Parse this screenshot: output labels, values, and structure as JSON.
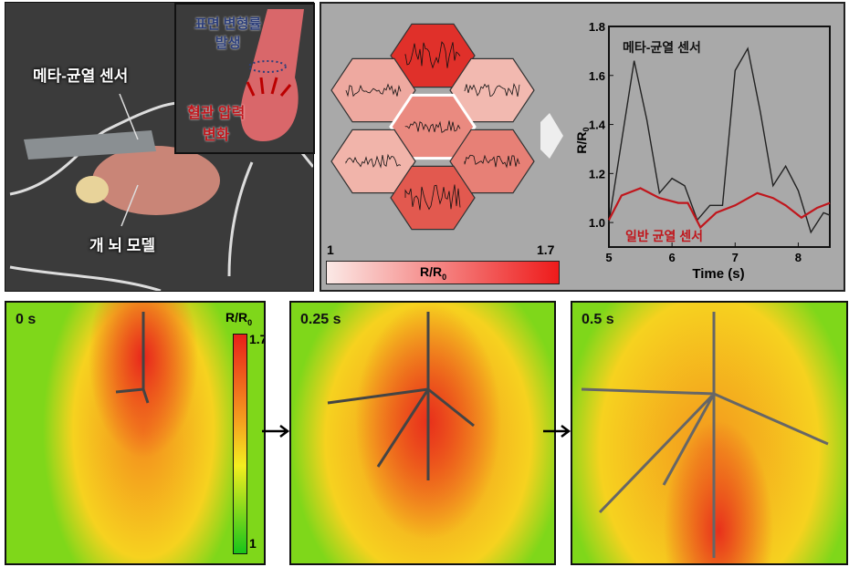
{
  "panel_a": {
    "sensor_label": "메타-균열 센서",
    "brain_label": "개 뇌 모델",
    "inset": {
      "strain_label_1": "표면 변형률",
      "strain_label_2": "발생",
      "pressure_label_1": "혈관 압력",
      "pressure_label_2": "변화"
    }
  },
  "panel_b": {
    "colorbar": {
      "min": "1",
      "max": "1.7",
      "label": "R/R",
      "label_sub": "0"
    }
  },
  "chart_data": {
    "type": "line",
    "xlabel": "Time (s)",
    "ylabel": "R/R",
    "ylabel_sub": "0",
    "xlim": [
      5,
      8.5
    ],
    "ylim": [
      0.9,
      1.8
    ],
    "xticks": [
      "5",
      "6",
      "7",
      "8"
    ],
    "yticks": [
      "1.0",
      "1.2",
      "1.4",
      "1.6",
      "1.8"
    ],
    "series": [
      {
        "name": "메타-균열 센서",
        "color": "#222222",
        "x": [
          5,
          5.4,
          5.6,
          5.8,
          6.0,
          6.2,
          6.4,
          6.6,
          6.8,
          7.0,
          7.2,
          7.4,
          7.6,
          7.8,
          8.0,
          8.2,
          8.4,
          8.5
        ],
        "y": [
          1.0,
          1.66,
          1.42,
          1.12,
          1.18,
          1.15,
          1.01,
          1.07,
          1.07,
          1.62,
          1.71,
          1.45,
          1.15,
          1.23,
          1.13,
          0.96,
          1.04,
          1.03
        ]
      },
      {
        "name": "일반 균열 센서",
        "color": "#c0161c",
        "x": [
          5,
          5.2,
          5.5,
          5.8,
          6.1,
          6.25,
          6.45,
          6.7,
          7.0,
          7.35,
          7.6,
          7.8,
          8.05,
          8.3,
          8.5
        ],
        "y": [
          1.01,
          1.11,
          1.14,
          1.1,
          1.08,
          1.08,
          0.98,
          1.04,
          1.07,
          1.12,
          1.1,
          1.07,
          1.02,
          1.06,
          1.08
        ]
      }
    ]
  },
  "heatmaps": [
    {
      "time": "0 s"
    },
    {
      "time": "0.25 s"
    },
    {
      "time": "0.5 s"
    }
  ],
  "heat_colorbar": {
    "label": "R/R",
    "label_sub": "0",
    "max": "1.7",
    "min": "1"
  }
}
